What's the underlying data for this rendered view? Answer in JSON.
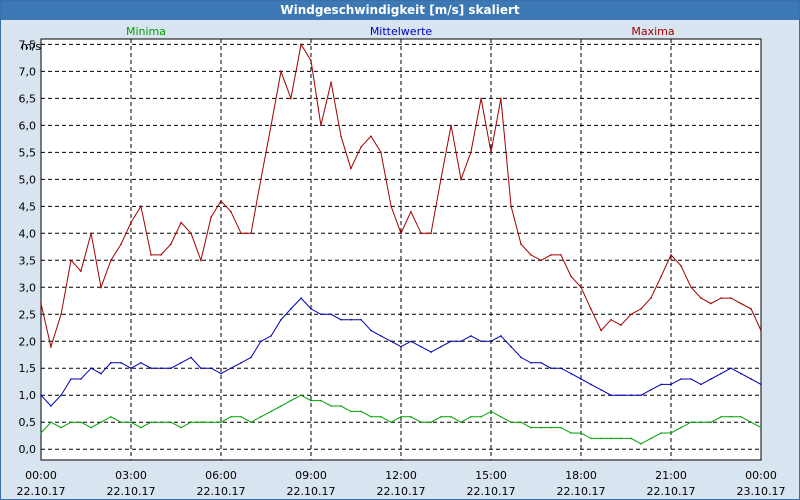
{
  "window": {
    "title": "Windgeschwindigkeit [m/s] skaliert"
  },
  "chart_data": {
    "type": "line",
    "title": "Windgeschwindigkeit [m/s] skaliert",
    "ylabel": "m/s",
    "ylim": [
      -0.2,
      7.6
    ],
    "yticks": [
      "7,5",
      "7,0",
      "6,5",
      "6,0",
      "5,5",
      "5,0",
      "4,5",
      "4,0",
      "3,5",
      "3,0",
      "2,5",
      "2,0",
      "1,5",
      "1,0",
      "0,5",
      "0,0"
    ],
    "ytick_values": [
      7.5,
      7.0,
      6.5,
      6.0,
      5.5,
      5.0,
      4.5,
      4.0,
      3.5,
      3.0,
      2.5,
      2.0,
      1.5,
      1.0,
      0.5,
      0.0
    ],
    "xlim": [
      0,
      24
    ],
    "xticks": [
      {
        "h": 0,
        "time": "00:00",
        "date": "22.10.17"
      },
      {
        "h": 3,
        "time": "03:00",
        "date": "22.10.17"
      },
      {
        "h": 6,
        "time": "06:00",
        "date": "22.10.17"
      },
      {
        "h": 9,
        "time": "09:00",
        "date": "22.10.17"
      },
      {
        "h": 12,
        "time": "12:00",
        "date": "22.10.17"
      },
      {
        "h": 15,
        "time": "15:00",
        "date": "22.10.17"
      },
      {
        "h": 18,
        "time": "18:00",
        "date": "22.10.17"
      },
      {
        "h": 21,
        "time": "21:00",
        "date": "22.10.17"
      },
      {
        "h": 24,
        "time": "00:00",
        "date": "23.10.17"
      }
    ],
    "grid": true,
    "series": [
      {
        "name": "Minima",
        "color": "#00a000",
        "x": [
          0,
          0.33,
          0.67,
          1,
          1.33,
          1.67,
          2,
          2.33,
          2.67,
          3,
          3.33,
          3.67,
          4,
          4.33,
          4.67,
          5,
          5.33,
          5.67,
          6,
          6.33,
          6.67,
          7,
          7.33,
          7.67,
          8,
          8.33,
          8.67,
          9,
          9.33,
          9.67,
          10,
          10.33,
          10.67,
          11,
          11.33,
          11.67,
          12,
          12.33,
          12.67,
          13,
          13.33,
          13.67,
          14,
          14.33,
          14.67,
          15,
          15.33,
          15.67,
          16,
          16.33,
          16.67,
          17,
          17.33,
          17.67,
          18,
          18.33,
          18.67,
          19,
          19.33,
          19.67,
          20,
          20.33,
          20.67,
          21,
          21.33,
          21.67,
          22,
          22.33,
          22.67,
          23,
          23.33,
          23.67,
          24
        ],
        "values": [
          0.3,
          0.5,
          0.4,
          0.5,
          0.5,
          0.4,
          0.5,
          0.6,
          0.5,
          0.5,
          0.4,
          0.5,
          0.5,
          0.5,
          0.4,
          0.5,
          0.5,
          0.5,
          0.5,
          0.6,
          0.6,
          0.5,
          0.6,
          0.7,
          0.8,
          0.9,
          1.0,
          0.9,
          0.9,
          0.8,
          0.8,
          0.7,
          0.7,
          0.6,
          0.6,
          0.5,
          0.6,
          0.6,
          0.5,
          0.5,
          0.6,
          0.6,
          0.5,
          0.6,
          0.6,
          0.7,
          0.6,
          0.5,
          0.5,
          0.4,
          0.4,
          0.4,
          0.4,
          0.3,
          0.3,
          0.2,
          0.2,
          0.2,
          0.2,
          0.2,
          0.1,
          0.2,
          0.3,
          0.3,
          0.4,
          0.5,
          0.5,
          0.5,
          0.6,
          0.6,
          0.6,
          0.5,
          0.4
        ]
      },
      {
        "name": "Mittelwerte",
        "color": "#0000b4",
        "x": [
          0,
          0.33,
          0.67,
          1,
          1.33,
          1.67,
          2,
          2.33,
          2.67,
          3,
          3.33,
          3.67,
          4,
          4.33,
          4.67,
          5,
          5.33,
          5.67,
          6,
          6.33,
          6.67,
          7,
          7.33,
          7.67,
          8,
          8.33,
          8.67,
          9,
          9.33,
          9.67,
          10,
          10.33,
          10.67,
          11,
          11.33,
          11.67,
          12,
          12.33,
          12.67,
          13,
          13.33,
          13.67,
          14,
          14.33,
          14.67,
          15,
          15.33,
          15.67,
          16,
          16.33,
          16.67,
          17,
          17.33,
          17.67,
          18,
          18.33,
          18.67,
          19,
          19.33,
          19.67,
          20,
          20.33,
          20.67,
          21,
          21.33,
          21.67,
          22,
          22.33,
          22.67,
          23,
          23.33,
          23.67,
          24
        ],
        "values": [
          1.0,
          0.8,
          1.0,
          1.3,
          1.3,
          1.5,
          1.4,
          1.6,
          1.6,
          1.5,
          1.6,
          1.5,
          1.5,
          1.5,
          1.6,
          1.7,
          1.5,
          1.5,
          1.4,
          1.5,
          1.6,
          1.7,
          2.0,
          2.1,
          2.4,
          2.6,
          2.8,
          2.6,
          2.5,
          2.5,
          2.4,
          2.4,
          2.4,
          2.2,
          2.1,
          2.0,
          1.9,
          2.0,
          1.9,
          1.8,
          1.9,
          2.0,
          2.0,
          2.1,
          2.0,
          2.0,
          2.1,
          1.9,
          1.7,
          1.6,
          1.6,
          1.5,
          1.5,
          1.4,
          1.3,
          1.2,
          1.1,
          1.0,
          1.0,
          1.0,
          1.0,
          1.1,
          1.2,
          1.2,
          1.3,
          1.3,
          1.2,
          1.3,
          1.4,
          1.5,
          1.4,
          1.3,
          1.2
        ]
      },
      {
        "name": "Maxima",
        "color": "#a00000",
        "x": [
          0,
          0.33,
          0.67,
          1,
          1.33,
          1.67,
          2,
          2.33,
          2.67,
          3,
          3.33,
          3.67,
          4,
          4.33,
          4.67,
          5,
          5.33,
          5.67,
          6,
          6.33,
          6.67,
          7,
          7.33,
          7.67,
          8,
          8.33,
          8.67,
          9,
          9.33,
          9.67,
          10,
          10.33,
          10.67,
          11,
          11.33,
          11.67,
          12,
          12.33,
          12.67,
          13,
          13.33,
          13.67,
          14,
          14.33,
          14.67,
          15,
          15.33,
          15.67,
          16,
          16.33,
          16.67,
          17,
          17.33,
          17.67,
          18,
          18.33,
          18.67,
          19,
          19.33,
          19.67,
          20,
          20.33,
          20.67,
          21,
          21.33,
          21.67,
          22,
          22.33,
          22.67,
          23,
          23.33,
          23.67,
          24
        ],
        "values": [
          2.7,
          1.9,
          2.5,
          3.5,
          3.3,
          4.0,
          3.0,
          3.5,
          3.8,
          4.2,
          4.5,
          3.6,
          3.6,
          3.8,
          4.2,
          4.0,
          3.5,
          4.3,
          4.6,
          4.4,
          4.0,
          4.0,
          5.0,
          6.0,
          7.0,
          6.5,
          7.5,
          7.2,
          6.0,
          6.8,
          5.8,
          5.2,
          5.6,
          5.8,
          5.5,
          4.5,
          4.0,
          4.4,
          4.0,
          4.0,
          5.0,
          6.0,
          5.0,
          5.5,
          6.5,
          5.5,
          6.5,
          4.5,
          3.8,
          3.6,
          3.5,
          3.6,
          3.6,
          3.2,
          3.0,
          2.6,
          2.2,
          2.4,
          2.3,
          2.5,
          2.6,
          2.8,
          3.2,
          3.6,
          3.4,
          3.0,
          2.8,
          2.7,
          2.8,
          2.8,
          2.7,
          2.6,
          2.2
        ]
      }
    ]
  }
}
